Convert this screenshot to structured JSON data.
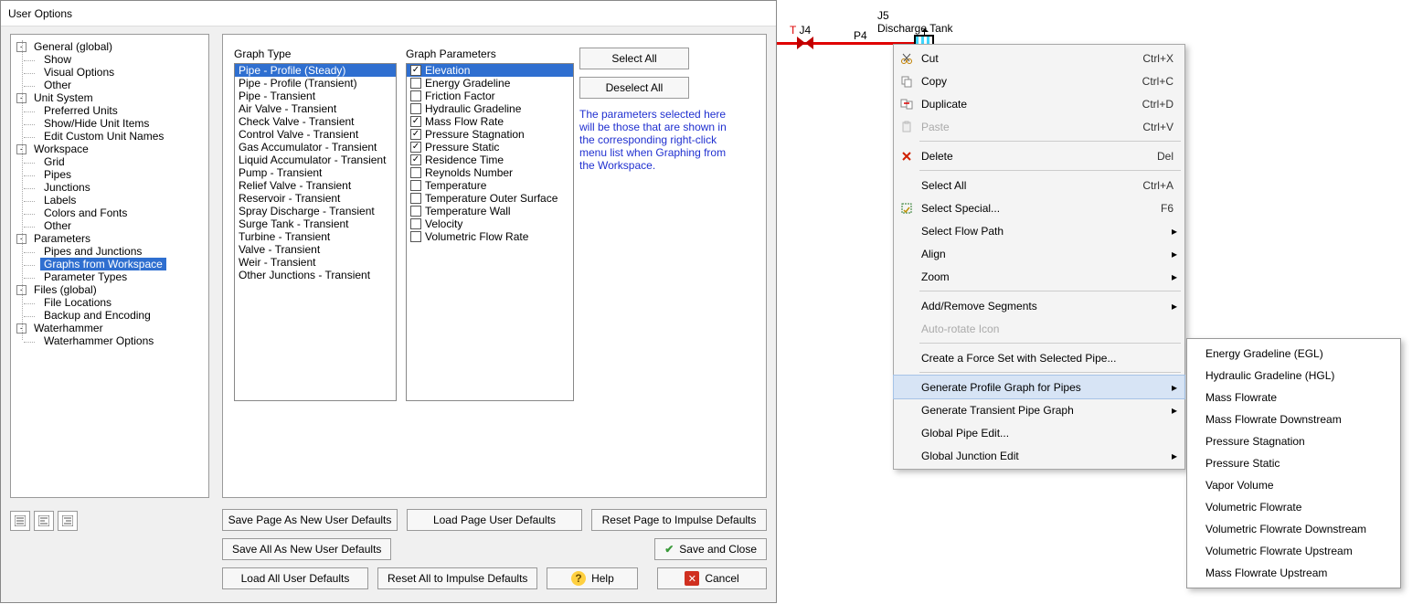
{
  "dialog": {
    "title": "User Options",
    "tree": [
      {
        "level": 0,
        "expand": "-",
        "label": "General (global)"
      },
      {
        "level": 1,
        "label": "Show"
      },
      {
        "level": 1,
        "label": "Visual Options"
      },
      {
        "level": 1,
        "label": "Other"
      },
      {
        "level": 0,
        "expand": "-",
        "label": "Unit System"
      },
      {
        "level": 1,
        "label": "Preferred Units"
      },
      {
        "level": 1,
        "label": "Show/Hide Unit Items"
      },
      {
        "level": 1,
        "label": "Edit Custom Unit Names"
      },
      {
        "level": 0,
        "expand": "-",
        "label": "Workspace"
      },
      {
        "level": 1,
        "label": "Grid"
      },
      {
        "level": 1,
        "label": "Pipes"
      },
      {
        "level": 1,
        "label": "Junctions"
      },
      {
        "level": 1,
        "label": "Labels"
      },
      {
        "level": 1,
        "label": "Colors and Fonts"
      },
      {
        "level": 1,
        "label": "Other"
      },
      {
        "level": 0,
        "expand": "-",
        "label": "Parameters"
      },
      {
        "level": 1,
        "label": "Pipes and Junctions"
      },
      {
        "level": 1,
        "label": "Graphs from Workspace",
        "selected": true
      },
      {
        "level": 1,
        "label": "Parameter Types"
      },
      {
        "level": 0,
        "expand": "-",
        "label": "Files (global)"
      },
      {
        "level": 1,
        "label": "File Locations"
      },
      {
        "level": 1,
        "label": "Backup and Encoding"
      },
      {
        "level": 0,
        "expand": "-",
        "label": "Waterhammer"
      },
      {
        "level": 1,
        "label": "Waterhammer Options"
      }
    ],
    "graphType": {
      "label": "Graph Type",
      "items": [
        {
          "label": "Pipe - Profile (Steady)",
          "selected": true
        },
        {
          "label": "Pipe - Profile (Transient)"
        },
        {
          "label": "Pipe - Transient"
        },
        {
          "label": "Air Valve - Transient"
        },
        {
          "label": "Check Valve - Transient"
        },
        {
          "label": "Control Valve - Transient"
        },
        {
          "label": "Gas Accumulator - Transient"
        },
        {
          "label": "Liquid Accumulator - Transient"
        },
        {
          "label": "Pump - Transient"
        },
        {
          "label": "Relief Valve - Transient"
        },
        {
          "label": "Reservoir - Transient"
        },
        {
          "label": "Spray Discharge - Transient"
        },
        {
          "label": "Surge Tank - Transient"
        },
        {
          "label": "Turbine - Transient"
        },
        {
          "label": "Valve - Transient"
        },
        {
          "label": "Weir - Transient"
        },
        {
          "label": "Other Junctions - Transient"
        }
      ]
    },
    "graphParams": {
      "label": "Graph Parameters",
      "items": [
        {
          "label": "Elevation",
          "checked": true,
          "selected": true
        },
        {
          "label": "Energy Gradeline"
        },
        {
          "label": "Friction Factor"
        },
        {
          "label": "Hydraulic Gradeline"
        },
        {
          "label": "Mass Flow Rate",
          "checked": true
        },
        {
          "label": "Pressure Stagnation",
          "checked": true
        },
        {
          "label": "Pressure Static",
          "checked": true
        },
        {
          "label": "Residence Time",
          "checked": true
        },
        {
          "label": "Reynolds Number"
        },
        {
          "label": "Temperature"
        },
        {
          "label": "Temperature Outer Surface"
        },
        {
          "label": "Temperature Wall"
        },
        {
          "label": "Velocity"
        },
        {
          "label": "Volumetric Flow Rate"
        }
      ]
    },
    "selectAll": "Select All",
    "deselectAll": "Deselect All",
    "note": "The parameters selected here will be those that are shown in the corresponding right-click menu list when Graphing from the Workspace.",
    "pageButtons": {
      "saveNew": "Save Page As New User Defaults",
      "load": "Load Page User Defaults",
      "reset": "Reset Page to Impulse Defaults"
    },
    "footer": {
      "saveAllNew": "Save All As New User Defaults",
      "loadAll": "Load All User Defaults",
      "resetAll": "Reset All to Impulse Defaults",
      "help": "Help",
      "saveClose": "Save and Close",
      "cancel": "Cancel"
    }
  },
  "workspace": {
    "j4": "J4",
    "t": "T",
    "j5a": "J5",
    "j5b": "Discharge Tank",
    "p4": "P4"
  },
  "ctx": {
    "items": [
      {
        "icon": "cut",
        "label": "Cut",
        "shortcut": "Ctrl+X"
      },
      {
        "icon": "copy",
        "label": "Copy",
        "shortcut": "Ctrl+C"
      },
      {
        "icon": "dup",
        "label": "Duplicate",
        "shortcut": "Ctrl+D"
      },
      {
        "icon": "paste",
        "label": "Paste",
        "shortcut": "Ctrl+V",
        "disabled": true
      },
      {
        "sep": true
      },
      {
        "icon": "del",
        "label": "Delete",
        "shortcut": "Del"
      },
      {
        "sep": true
      },
      {
        "label": "Select All",
        "shortcut": "Ctrl+A"
      },
      {
        "icon": "ssel",
        "label": "Select Special...",
        "shortcut": "F6"
      },
      {
        "label": "Select Flow Path",
        "arrow": true
      },
      {
        "label": "Align",
        "arrow": true
      },
      {
        "label": "Zoom",
        "arrow": true
      },
      {
        "sep": true
      },
      {
        "label": "Add/Remove Segments",
        "arrow": true
      },
      {
        "label": "Auto-rotate Icon",
        "disabled": true
      },
      {
        "sep": true
      },
      {
        "label": "Create a Force Set with Selected Pipe..."
      },
      {
        "sep": true
      },
      {
        "label": "Generate Profile Graph for Pipes",
        "arrow": true,
        "hover": true
      },
      {
        "label": "Generate Transient Pipe Graph",
        "arrow": true
      },
      {
        "label": "Global Pipe Edit..."
      },
      {
        "label": "Global Junction Edit",
        "arrow": true
      }
    ]
  },
  "submenu": [
    "Energy Gradeline (EGL)",
    "Hydraulic Gradeline (HGL)",
    "Mass Flowrate",
    "Mass Flowrate Downstream",
    "Pressure Stagnation",
    "Pressure Static",
    "Vapor Volume",
    "Volumetric Flowrate",
    "Volumetric Flowrate Downstream",
    "Volumetric Flowrate Upstream",
    "Mass Flowrate Upstream"
  ]
}
